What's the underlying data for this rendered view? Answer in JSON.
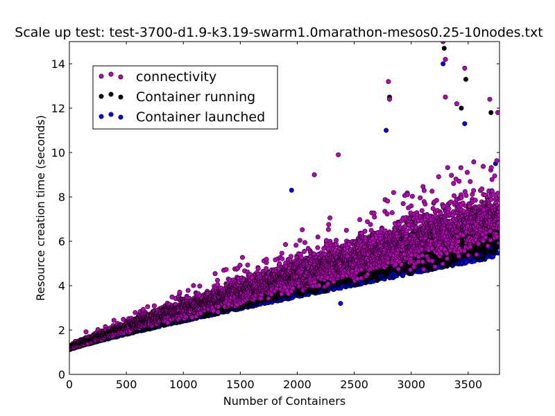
{
  "chart_data": {
    "type": "scatter",
    "title": "Scale up test: test-3700-d1.9-k3.19-swarm1.0marathon-mesos0.25-10nodes.txt",
    "xlabel": "Number of Containers",
    "ylabel": "Resource creation time (seconds)",
    "xlim": [
      0,
      3775
    ],
    "ylim": [
      0,
      15
    ],
    "xticks": [
      0,
      500,
      1000,
      1500,
      2000,
      2500,
      3000,
      3500
    ],
    "yticks": [
      0,
      2,
      4,
      6,
      8,
      10,
      12,
      14
    ],
    "grid": false,
    "legend_position": "top-left",
    "n_points": 3775,
    "series": [
      {
        "name": "Container launched",
        "color": "#0000ff",
        "start_y": 1.1,
        "end_y": 5.4,
        "outliers": [
          [
            2380,
            3.2
          ],
          [
            1950,
            8.3
          ],
          [
            2780,
            11.0
          ],
          [
            3280,
            14.0
          ],
          [
            3470,
            11.3
          ],
          [
            3740,
            9.5
          ]
        ]
      },
      {
        "name": "Container running",
        "color": "#000000",
        "start_y": 1.2,
        "end_y": 6.0,
        "outliers": [
          [
            3290,
            14.7
          ],
          [
            3480,
            13.3
          ],
          [
            2810,
            12.5
          ],
          [
            3440,
            12.0
          ],
          [
            3700,
            11.8
          ]
        ]
      },
      {
        "name": "connectivity",
        "color": "#bf00bf",
        "start_y": 1.3,
        "end_y": 7.0,
        "outliers": [
          [
            3280,
            15.0
          ],
          [
            3300,
            14.2
          ],
          [
            3470,
            13.8
          ],
          [
            2800,
            13.2
          ],
          [
            2810,
            12.4
          ],
          [
            3300,
            12.5
          ],
          [
            3400,
            12.2
          ],
          [
            3690,
            12.4
          ],
          [
            3760,
            11.8
          ],
          [
            2360,
            9.9
          ],
          [
            2150,
            9.0
          ]
        ]
      }
    ],
    "legend": [
      {
        "label": "connectivity",
        "color": "#bf00bf"
      },
      {
        "label": "Container running",
        "color": "#000000"
      },
      {
        "label": "Container launched",
        "color": "#0000ff"
      }
    ]
  }
}
